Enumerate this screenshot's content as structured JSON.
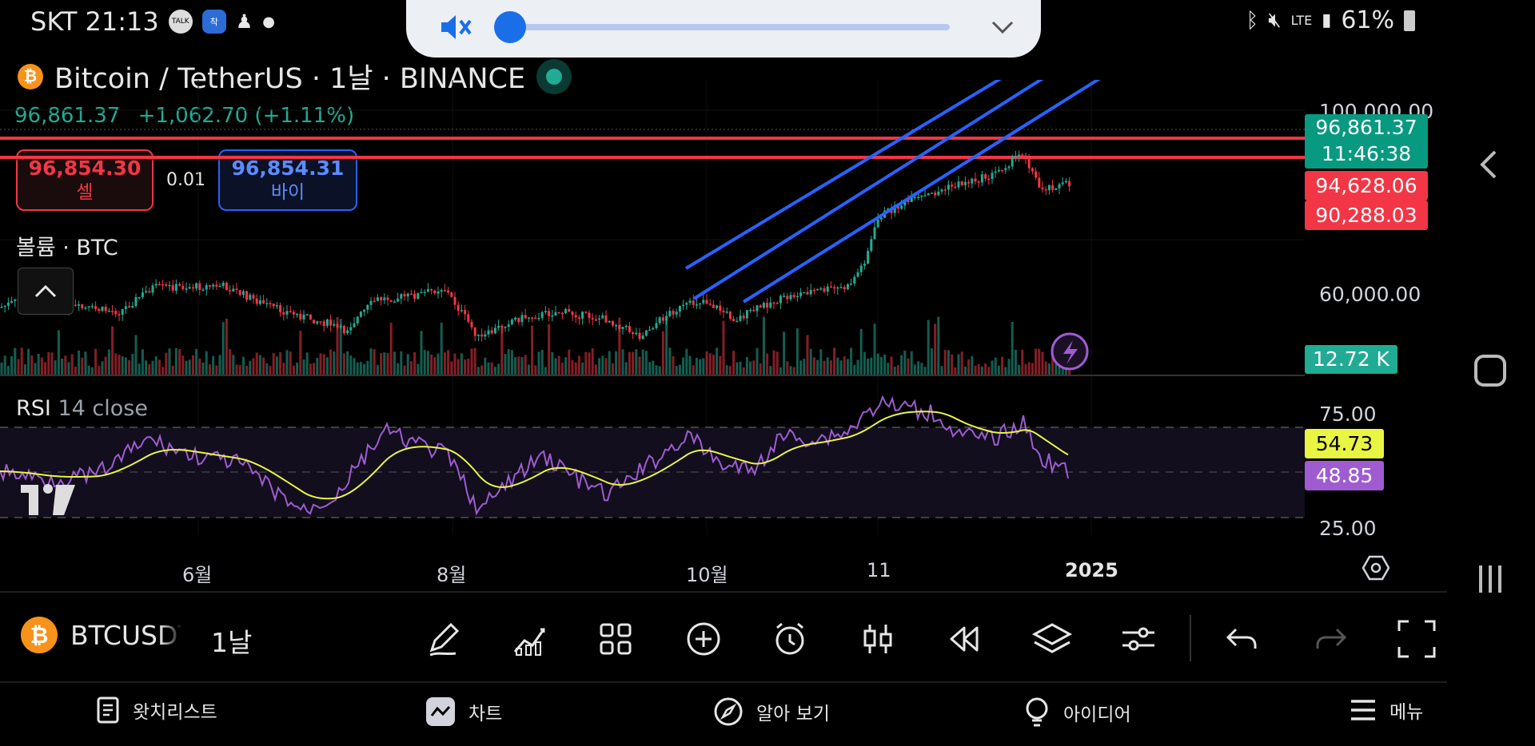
{
  "status_bar": {
    "carrier_time": "SKT 21:13",
    "battery": "61%",
    "network": "LTE",
    "notification_icons": [
      "talk-icon",
      "bixby-icon",
      "person-icon"
    ]
  },
  "volume_panel": {
    "level": 0.02,
    "muted": true
  },
  "symbol": {
    "title": "Bitcoin / TetherUS · 1날 · BINANCE",
    "last_price": "96,861.37",
    "change": "+1,062.70 (+1.11%)"
  },
  "trade": {
    "sell_price": "96,854.30",
    "sell_label": "셀",
    "spread": "0.01",
    "buy_price": "96,854.31",
    "buy_label": "바이"
  },
  "volume_pane": {
    "title": "볼륨 · BTC",
    "value_tag": "12.72 K"
  },
  "rsi_pane": {
    "title": "RSI",
    "params": "14 close",
    "rsi_value": "48.85",
    "ma_value": "54.73",
    "levels": [
      "75.00",
      "25.00"
    ]
  },
  "price_axis": {
    "labels": [
      "100,000.00",
      "60,000.00"
    ],
    "current_price": "96,861.37",
    "countdown": "11:46:38",
    "alert_1": "94,628.06",
    "alert_2": "90,288.03"
  },
  "time_axis": {
    "labels": [
      "6월",
      "8월",
      "10월",
      "11",
      "2025"
    ]
  },
  "toolbar": {
    "symbol": "BTCUSDT",
    "interval": "1날",
    "tools": [
      "pencil-icon",
      "indicators-icon",
      "layout-icon",
      "add-icon",
      "alert-icon",
      "candles-icon",
      "replay-icon",
      "layers-icon",
      "settings-icon",
      "undo-icon",
      "redo-icon",
      "fullscreen-icon"
    ]
  },
  "bottom_nav": {
    "items": [
      {
        "label": "왓치리스트",
        "icon": "watchlist-icon"
      },
      {
        "label": "차트",
        "icon": "chart-icon"
      },
      {
        "label": "알아 보기",
        "icon": "explore-icon"
      },
      {
        "label": "아이디어",
        "icon": "idea-icon"
      },
      {
        "label": "메뉴",
        "icon": "menu-icon"
      }
    ]
  },
  "colors": {
    "up": "#22ab94",
    "down": "#f23645",
    "channel": "#2962ff",
    "rsi": "#9e5cd0",
    "rsi_ma": "#e9f542"
  }
}
